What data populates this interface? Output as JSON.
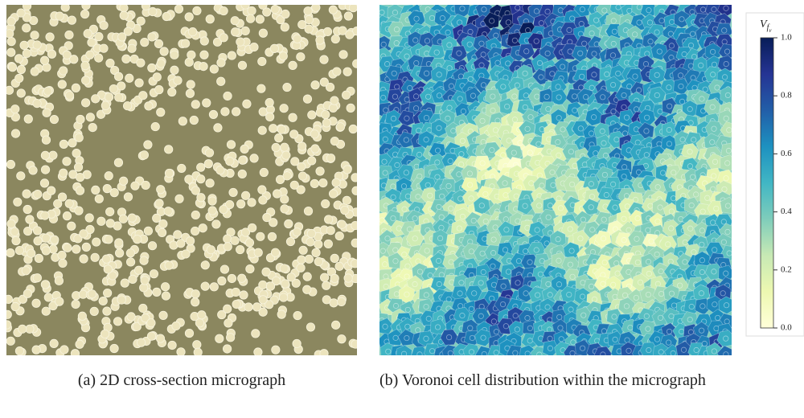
{
  "panels": {
    "a": {
      "caption": "(a) 2D cross-section micrograph"
    },
    "b": {
      "caption": "(b) Voronoi cell distribution within the micrograph"
    }
  },
  "colorbar": {
    "symbol": "V",
    "subscript": "f",
    "sub_subscript": "v",
    "lim": [
      0,
      1
    ],
    "ticks": [
      {
        "value": 0,
        "label": "0.0"
      },
      {
        "value": 0.2,
        "label": "0.2"
      },
      {
        "value": 0.4,
        "label": "0.4"
      },
      {
        "value": 0.6,
        "label": "0.6"
      },
      {
        "value": 0.8,
        "label": "0.8"
      },
      {
        "value": 1,
        "label": "1.0"
      }
    ],
    "colors": [
      "#ffffd9",
      "#edf8b1",
      "#c7e9b4",
      "#7fcdbb",
      "#41b6c4",
      "#1d91c0",
      "#225ea8",
      "#253494",
      "#081d58"
    ]
  }
}
